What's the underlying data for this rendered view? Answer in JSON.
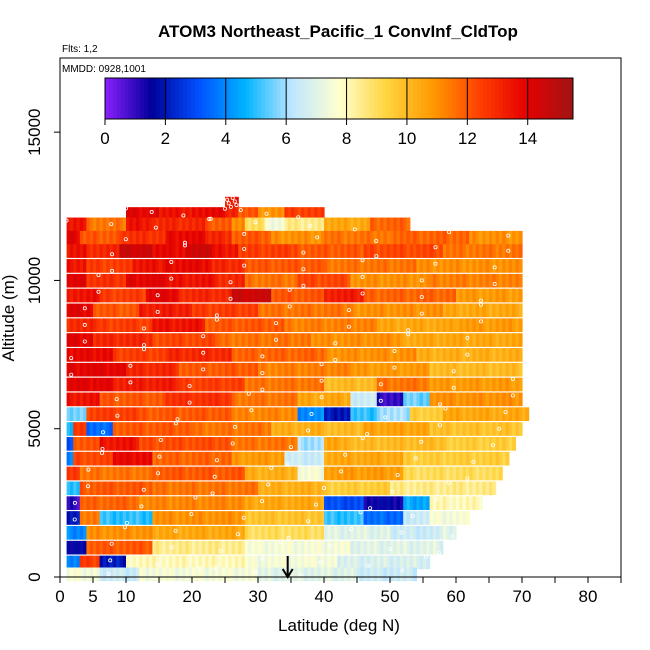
{
  "chart_data": {
    "type": "heatmap",
    "title": "ATOM3 Northeast_Pacific_1 ConvInf_CldTop",
    "flights_label": "Flts: 1,2",
    "mmdd_label": "MMDD: 0928,1001",
    "xlabel": "Latitude (deg N)",
    "ylabel": "Altitude (m)",
    "xlim": [
      0,
      85
    ],
    "ylim": [
      0,
      17500
    ],
    "x_ticks": [
      0,
      5,
      10,
      20,
      30,
      40,
      50,
      60,
      70,
      80
    ],
    "y_ticks": [
      0,
      5000,
      10000,
      15000
    ],
    "colorbar": {
      "range": [
        0,
        15.5
      ],
      "ticks": [
        0,
        2,
        4,
        6,
        8,
        10,
        12,
        14
      ],
      "colors": [
        "#8b1fff",
        "#00009a",
        "#0050ff",
        "#00b4ff",
        "#bfe6ff",
        "#ffffd0",
        "#ffd540",
        "#ff9a00",
        "#ff4000",
        "#e60000",
        "#a01414"
      ]
    },
    "marker_latitude": 34.5,
    "rows": [
      {
        "alt": 12600,
        "segments": [
          [
            25,
            27,
            13.5
          ]
        ]
      },
      {
        "alt": 12250,
        "segments": [
          [
            10,
            15,
            14.0
          ],
          [
            15,
            20,
            13.5
          ],
          [
            20,
            25,
            13.8
          ],
          [
            25,
            27,
            13.0
          ],
          [
            27,
            30,
            12.0
          ],
          [
            30,
            34,
            11.0
          ],
          [
            34,
            40,
            12.5
          ]
        ]
      },
      {
        "alt": 11900,
        "segments": [
          [
            1,
            4,
            13.5
          ],
          [
            4,
            10,
            11.5
          ],
          [
            10,
            14,
            13.5
          ],
          [
            14,
            22,
            13.0
          ],
          [
            22,
            26,
            12.0
          ],
          [
            26,
            28,
            11.0
          ],
          [
            28,
            31,
            9.0
          ],
          [
            31,
            34,
            7.5
          ],
          [
            34,
            40,
            8.5
          ],
          [
            40,
            47,
            10.5
          ],
          [
            47,
            53,
            11.8
          ]
        ]
      },
      {
        "alt": 11450,
        "segments": [
          [
            1,
            3,
            14.0
          ],
          [
            3,
            9,
            12.0
          ],
          [
            9,
            16,
            12.8
          ],
          [
            16,
            22,
            13.8
          ],
          [
            22,
            26,
            13.0
          ],
          [
            26,
            32,
            12.0
          ],
          [
            32,
            40,
            11.0
          ],
          [
            40,
            50,
            11.5
          ],
          [
            50,
            62,
            11.8
          ],
          [
            62,
            70,
            11.0
          ]
        ]
      },
      {
        "alt": 11000,
        "segments": [
          [
            1,
            4,
            13.5
          ],
          [
            4,
            9,
            13.0
          ],
          [
            9,
            14,
            14.5
          ],
          [
            14,
            19,
            13.8
          ],
          [
            19,
            23,
            14.5
          ],
          [
            23,
            27,
            13.5
          ],
          [
            27,
            36,
            12.5
          ],
          [
            36,
            46,
            12.0
          ],
          [
            46,
            58,
            12.3
          ],
          [
            58,
            70,
            11.5
          ]
        ]
      },
      {
        "alt": 10500,
        "segments": [
          [
            1,
            4,
            13.5
          ],
          [
            4,
            11,
            12.5
          ],
          [
            11,
            16,
            13.5
          ],
          [
            16,
            23,
            13.8
          ],
          [
            23,
            28,
            13.0
          ],
          [
            28,
            40,
            12.0
          ],
          [
            40,
            54,
            11.5
          ],
          [
            54,
            70,
            11.0
          ]
        ]
      },
      {
        "alt": 10000,
        "segments": [
          [
            1,
            4,
            14.0
          ],
          [
            4,
            10,
            12.8
          ],
          [
            10,
            16,
            14.0
          ],
          [
            16,
            24,
            13.5
          ],
          [
            24,
            28,
            13.0
          ],
          [
            28,
            36,
            11.5
          ],
          [
            36,
            44,
            12.3
          ],
          [
            44,
            56,
            11.0
          ],
          [
            56,
            70,
            11.3
          ]
        ]
      },
      {
        "alt": 9500,
        "segments": [
          [
            1,
            6,
            13.5
          ],
          [
            6,
            13,
            12.5
          ],
          [
            13,
            18,
            14.0
          ],
          [
            18,
            26,
            13.0
          ],
          [
            26,
            32,
            14.5
          ],
          [
            32,
            40,
            12.0
          ],
          [
            40,
            46,
            13.3
          ],
          [
            46,
            60,
            11.8
          ],
          [
            60,
            70,
            10.8
          ]
        ]
      },
      {
        "alt": 9000,
        "segments": [
          [
            1,
            5,
            14.0
          ],
          [
            5,
            12,
            12.0
          ],
          [
            12,
            20,
            13.3
          ],
          [
            20,
            30,
            12.5
          ],
          [
            30,
            44,
            11.5
          ],
          [
            44,
            58,
            11.0
          ],
          [
            58,
            70,
            10.5
          ]
        ]
      },
      {
        "alt": 8500,
        "segments": [
          [
            1,
            6,
            13.0
          ],
          [
            6,
            14,
            12.5
          ],
          [
            14,
            22,
            13.5
          ],
          [
            22,
            34,
            12.0
          ],
          [
            34,
            48,
            11.3
          ],
          [
            48,
            60,
            10.5
          ],
          [
            60,
            70,
            10.8
          ]
        ]
      },
      {
        "alt": 8000,
        "segments": [
          [
            1,
            5,
            14.0
          ],
          [
            5,
            14,
            13.0
          ],
          [
            14,
            24,
            12.3
          ],
          [
            24,
            38,
            11.5
          ],
          [
            38,
            52,
            11.0
          ],
          [
            52,
            70,
            10.5
          ]
        ]
      },
      {
        "alt": 7500,
        "segments": [
          [
            1,
            8,
            13.8
          ],
          [
            8,
            16,
            12.5
          ],
          [
            16,
            26,
            13.0
          ],
          [
            26,
            40,
            11.8
          ],
          [
            40,
            54,
            11.0
          ],
          [
            54,
            70,
            10.3
          ]
        ]
      },
      {
        "alt": 7000,
        "segments": [
          [
            1,
            10,
            14.0
          ],
          [
            10,
            18,
            13.0
          ],
          [
            18,
            30,
            12.0
          ],
          [
            30,
            44,
            11.3
          ],
          [
            44,
            56,
            10.8
          ],
          [
            56,
            70,
            10.0
          ]
        ]
      },
      {
        "alt": 6500,
        "segments": [
          [
            1,
            8,
            14.0
          ],
          [
            8,
            18,
            13.3
          ],
          [
            18,
            28,
            12.5
          ],
          [
            28,
            40,
            11.5
          ],
          [
            40,
            48,
            10.0
          ],
          [
            48,
            56,
            11.5
          ],
          [
            56,
            70,
            10.8
          ]
        ]
      },
      {
        "alt": 6000,
        "segments": [
          [
            1,
            6,
            13.5
          ],
          [
            6,
            16,
            12.0
          ],
          [
            16,
            26,
            12.8
          ],
          [
            26,
            36,
            11.5
          ],
          [
            36,
            44,
            10.5
          ],
          [
            44,
            48,
            6.5
          ],
          [
            48,
            52,
            1.0
          ],
          [
            52,
            56,
            5.5
          ],
          [
            56,
            70,
            11.0
          ]
        ]
      },
      {
        "alt": 5500,
        "segments": [
          [
            1,
            4,
            5.5
          ],
          [
            4,
            12,
            12.5
          ],
          [
            12,
            26,
            12.0
          ],
          [
            26,
            36,
            11.2
          ],
          [
            36,
            40,
            4.0
          ],
          [
            40,
            44,
            2.0
          ],
          [
            44,
            48,
            5.0
          ],
          [
            48,
            53,
            6.0
          ],
          [
            53,
            58,
            9.5
          ],
          [
            58,
            71,
            10.5
          ]
        ]
      },
      {
        "alt": 5000,
        "segments": [
          [
            1,
            2,
            5.0
          ],
          [
            2,
            4,
            12.5
          ],
          [
            4,
            8,
            3.5
          ],
          [
            8,
            20,
            12.0
          ],
          [
            20,
            32,
            11.5
          ],
          [
            32,
            40,
            10.3
          ],
          [
            40,
            46,
            10.0
          ],
          [
            46,
            56,
            10.6
          ],
          [
            56,
            70,
            9.8
          ]
        ]
      },
      {
        "alt": 4500,
        "segments": [
          [
            1,
            2,
            3.0
          ],
          [
            2,
            6,
            12.0
          ],
          [
            6,
            12,
            13.5
          ],
          [
            12,
            26,
            12.2
          ],
          [
            26,
            36,
            11.5
          ],
          [
            36,
            40,
            6.0
          ],
          [
            40,
            44,
            10.5
          ],
          [
            44,
            58,
            10.0
          ],
          [
            58,
            69,
            9.5
          ]
        ]
      },
      {
        "alt": 4000,
        "segments": [
          [
            1,
            2,
            4.0
          ],
          [
            2,
            8,
            12.3
          ],
          [
            8,
            14,
            13.8
          ],
          [
            14,
            26,
            11.8
          ],
          [
            26,
            34,
            10.8
          ],
          [
            34,
            40,
            6.5
          ],
          [
            40,
            52,
            10.5
          ],
          [
            52,
            68,
            9.5
          ]
        ]
      },
      {
        "alt": 3500,
        "segments": [
          [
            1,
            3,
            12.5
          ],
          [
            3,
            14,
            11.5
          ],
          [
            14,
            28,
            12.0
          ],
          [
            28,
            36,
            10.3
          ],
          [
            36,
            40,
            7.5
          ],
          [
            40,
            52,
            10.8
          ],
          [
            52,
            67,
            9.0
          ]
        ]
      },
      {
        "alt": 3000,
        "segments": [
          [
            1,
            3,
            5.0
          ],
          [
            3,
            14,
            12.0
          ],
          [
            14,
            30,
            11.5
          ],
          [
            30,
            40,
            10.3
          ],
          [
            40,
            50,
            9.5
          ],
          [
            50,
            66,
            8.5
          ]
        ]
      },
      {
        "alt": 2500,
        "segments": [
          [
            1,
            3,
            1.0
          ],
          [
            3,
            12,
            11.8
          ],
          [
            12,
            28,
            11.2
          ],
          [
            28,
            40,
            10.5
          ],
          [
            40,
            46,
            3.0
          ],
          [
            46,
            52,
            1.5
          ],
          [
            52,
            56,
            4.5
          ],
          [
            56,
            64,
            8.0
          ]
        ]
      },
      {
        "alt": 2000,
        "segments": [
          [
            1,
            3,
            2.0
          ],
          [
            3,
            6,
            11.5
          ],
          [
            6,
            14,
            5.0
          ],
          [
            14,
            28,
            11.0
          ],
          [
            28,
            40,
            9.8
          ],
          [
            40,
            46,
            5.0
          ],
          [
            46,
            52,
            3.5
          ],
          [
            52,
            56,
            6.5
          ],
          [
            56,
            62,
            7.5
          ]
        ]
      },
      {
        "alt": 1500,
        "segments": [
          [
            1,
            4,
            4.0
          ],
          [
            4,
            14,
            11.0
          ],
          [
            14,
            28,
            10.5
          ],
          [
            28,
            40,
            9.0
          ],
          [
            40,
            50,
            7.0
          ],
          [
            50,
            58,
            6.5
          ],
          [
            58,
            60,
            7.0
          ]
        ]
      },
      {
        "alt": 1000,
        "segments": [
          [
            1,
            4,
            1.5
          ],
          [
            4,
            14,
            12.0
          ],
          [
            14,
            28,
            8.5
          ],
          [
            28,
            44,
            7.5
          ],
          [
            44,
            58,
            7.0
          ]
        ]
      },
      {
        "alt": 500,
        "segments": [
          [
            1,
            3,
            4.0
          ],
          [
            3,
            6,
            12.5
          ],
          [
            6,
            10,
            2.0
          ],
          [
            10,
            28,
            8.0
          ],
          [
            28,
            42,
            7.5
          ],
          [
            42,
            56,
            6.8
          ]
        ]
      },
      {
        "alt": 100,
        "segments": [
          [
            1,
            6,
            7.5
          ],
          [
            6,
            12,
            6.5
          ],
          [
            12,
            30,
            7.5
          ],
          [
            30,
            45,
            7.0
          ],
          [
            45,
            54,
            6.5
          ]
        ]
      }
    ]
  }
}
